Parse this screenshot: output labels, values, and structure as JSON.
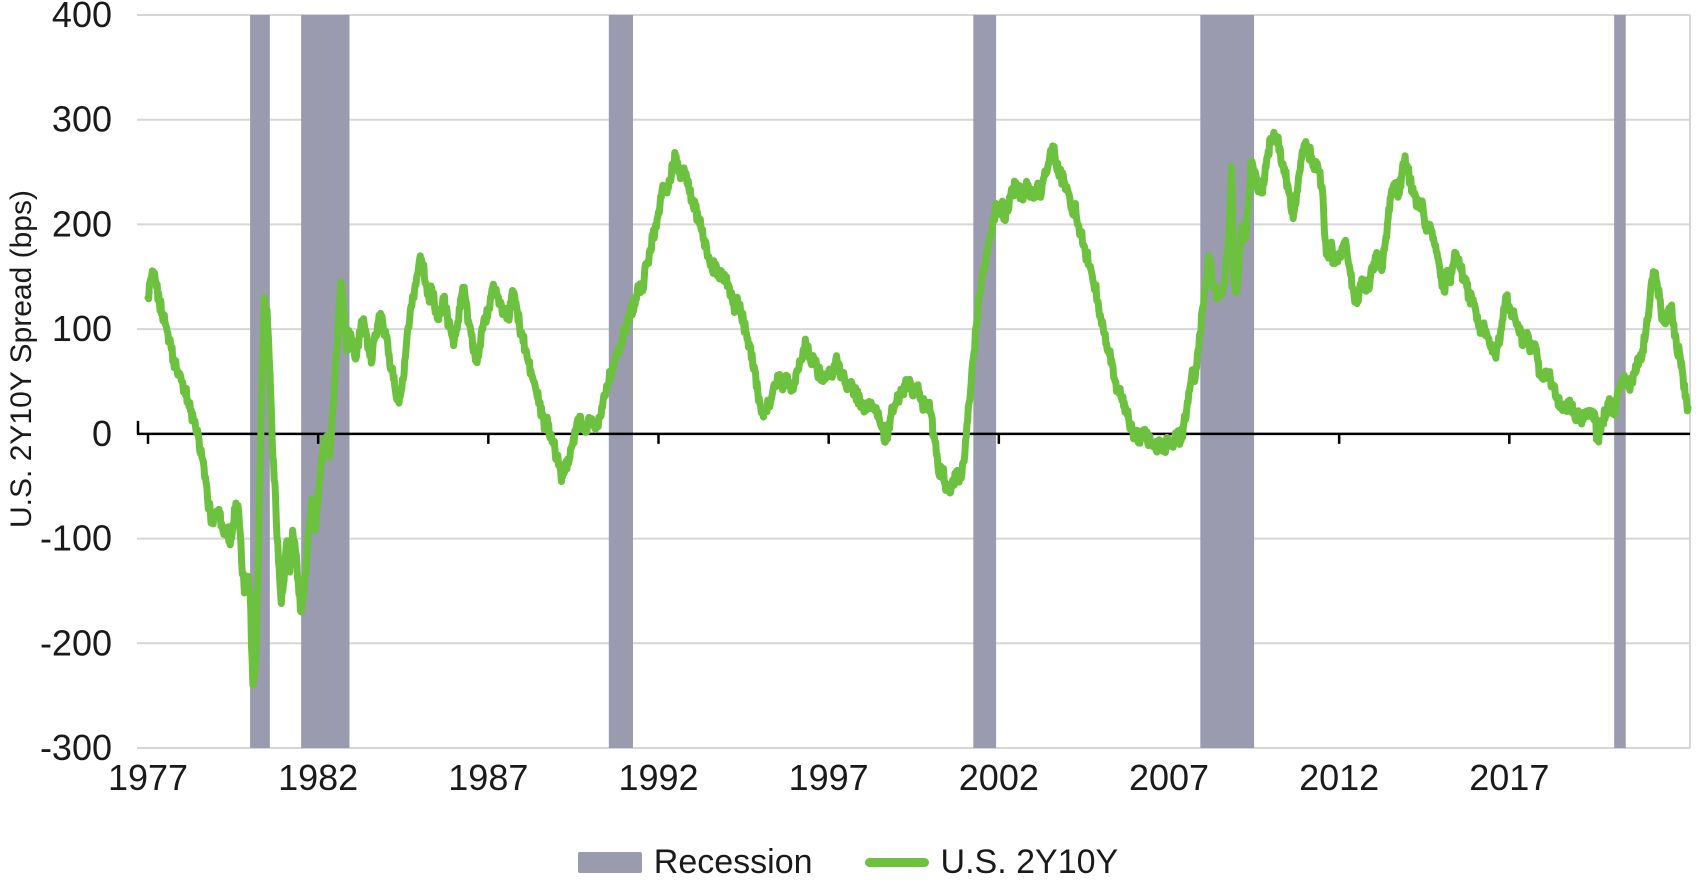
{
  "chart": {
    "y_axis_title": "U.S. 2Y10Y Spread (bps)"
  },
  "legend": {
    "recession_label": "Recession",
    "series_label": "U.S. 2Y10Y"
  },
  "colors": {
    "series_green": "#6cc13e",
    "recession_gray": "#9b9bb0",
    "gridline": "#d6d6d6",
    "axis_black": "#000000",
    "text": "#1a1a1a"
  },
  "chart_data": {
    "type": "line",
    "title": "",
    "xlabel": "",
    "ylabel": "U.S. 2Y10Y Spread (bps)",
    "ylim": [
      -300,
      400
    ],
    "y_ticks": [
      400,
      300,
      200,
      100,
      0,
      -100,
      -200,
      -300
    ],
    "x_ticks": [
      1977,
      1982,
      1987,
      1992,
      1997,
      2002,
      2007,
      2012,
      2017
    ],
    "x_domain": [
      1977.0,
      2022.25
    ],
    "grid": "horizontal",
    "zero_axis": true,
    "legend_position": "bottom",
    "series": [
      {
        "name": "U.S. 2Y10Y",
        "color": "#6cc13e",
        "unit": "bps",
        "start_year": 1977,
        "interval_months": 1,
        "values_bps": [
          130,
          148,
          150,
          140,
          126,
          116,
          106,
          96,
          86,
          72,
          62,
          56,
          50,
          42,
          32,
          22,
          12,
          2,
          -6,
          -22,
          -42,
          -62,
          -76,
          -86,
          -80,
          -72,
          -86,
          -96,
          -90,
          -106,
          -86,
          -66,
          -76,
          -122,
          -152,
          -136,
          -152,
          -240,
          -218,
          -110,
          30,
          130,
          118,
          58,
          -22,
          -62,
          -122,
          -162,
          -140,
          -102,
          -132,
          -92,
          -112,
          -142,
          -170,
          -150,
          -120,
          -82,
          -62,
          -92,
          -62,
          -32,
          -12,
          -2,
          -22,
          18,
          58,
          100,
          145,
          118,
          82,
          95,
          90,
          72,
          85,
          100,
          110,
          95,
          80,
          70,
          95,
          105,
          115,
          100,
          92,
          76,
          60,
          46,
          32,
          36,
          52,
          82,
          102,
          122,
          138,
          152,
          170,
          158,
          144,
          130,
          140,
          124,
          110,
          114,
          130,
          120,
          104,
          95,
          90,
          100,
          120,
          140,
          128,
          108,
          94,
          78,
          68,
          86,
          100,
          110,
          120,
          130,
          140,
          134,
          124,
          114,
          120,
          110,
          125,
          135,
          120,
          104,
          94,
          80,
          70,
          60,
          50,
          40,
          30,
          16,
          6,
          10,
          0,
          -10,
          -20,
          -30,
          -42,
          -34,
          -24,
          -14,
          -4,
          6,
          14,
          10,
          4,
          10,
          14,
          10,
          6,
          16,
          26,
          36,
          46,
          56,
          66,
          76,
          82,
          90,
          96,
          106,
          116,
          122,
          130,
          140,
          136,
          150,
          162,
          176,
          186,
          200,
          212,
          226,
          236,
          230,
          242,
          256,
          266,
          250,
          244,
          254,
          240,
          230,
          224,
          214,
          204,
          196,
          186,
          176,
          166,
          156,
          162,
          152,
          156,
          146,
          150,
          140,
          130,
          120,
          126,
          116,
          106,
          96,
          86,
          76,
          60,
          40,
          26,
          16,
          22,
          30,
          36,
          46,
          56,
          50,
          46,
          56,
          50,
          46,
          50,
          60,
          70,
          80,
          85,
          76,
          66,
          70,
          60,
          56,
          50,
          56,
          60,
          56,
          66,
          70,
          60,
          56,
          50,
          46,
          50,
          40,
          36,
          30,
          26,
          22,
          26,
          30,
          26,
          20,
          12,
          6,
          -8,
          4,
          18,
          24,
          30,
          36,
          40,
          46,
          50,
          46,
          40,
          44,
          40,
          30,
          26,
          30,
          20,
          0,
          -20,
          -40,
          -34,
          -46,
          -50,
          -56,
          -46,
          -40,
          -46,
          -36,
          -20,
          12,
          40,
          72,
          102,
          130,
          150,
          160,
          172,
          190,
          202,
          220,
          210,
          220,
          206,
          216,
          226,
          230,
          240,
          234,
          226,
          230,
          236,
          226,
          230,
          226,
          236,
          230,
          246,
          250,
          266,
          275,
          260,
          250,
          246,
          240,
          236,
          226,
          210,
          220,
          200,
          190,
          180,
          170,
          160,
          150,
          140,
          126,
          110,
          96,
          86,
          76,
          66,
          50,
          40,
          36,
          26,
          20,
          10,
          4,
          0,
          -6,
          -2,
          4,
          0,
          -6,
          -10,
          -8,
          -12,
          -10,
          -16,
          -10,
          -8,
          -12,
          -4,
          0,
          -6,
          6,
          16,
          40,
          56,
          50,
          76,
          96,
          122,
          146,
          170,
          156,
          140,
          130,
          136,
          140,
          156,
          186,
          255,
          145,
          136,
          180,
          196,
          186,
          220,
          260,
          250,
          236,
          240,
          230,
          256,
          270,
          280,
          288,
          282,
          274,
          256,
          246,
          236,
          216,
          210,
          230,
          250,
          270,
          274,
          270,
          266,
          260,
          256,
          250,
          236,
          186,
          170,
          180,
          166,
          166,
          170,
          178,
          183,
          168,
          152,
          138,
          126,
          136,
          148,
          143,
          138,
          150,
          156,
          170,
          165,
          156,
          176,
          200,
          225,
          236,
          240,
          230,
          246,
          260,
          256,
          240,
          235,
          226,
          216,
          220,
          206,
          196,
          200,
          186,
          180,
          166,
          150,
          136,
          156,
          146,
          160,
          170,
          166,
          156,
          146,
          140,
          130,
          126,
          120,
          106,
          96,
          106,
          96,
          86,
          78,
          76,
          86,
          100,
          120,
          128,
          122,
          116,
          110,
          105,
          96,
          86,
          92,
          86,
          80,
          86,
          70,
          56,
          52,
          60,
          56,
          48,
          45,
          35,
          28,
          25,
          22,
          28,
          25,
          18,
          16,
          14,
          13,
          17,
          18,
          22,
          20,
          -6,
          4,
          12,
          22,
          28,
          25,
          18,
          35,
          45,
          48,
          52,
          45,
          50,
          58,
          65,
          72,
          80,
          95,
          112,
          142,
          152,
          145,
          130,
          110,
          105,
          116,
          122,
          105,
          82,
          78,
          60,
          35,
          25
        ]
      }
    ],
    "recessions": {
      "name": "Recession",
      "color": "#9b9bb0",
      "bands_decimal_years": [
        [
          1980.0,
          1980.58
        ],
        [
          1981.5,
          1982.92
        ],
        [
          1990.54,
          1991.25
        ],
        [
          2001.25,
          2001.92
        ],
        [
          2007.92,
          2009.5
        ],
        [
          2020.08,
          2020.42
        ]
      ]
    }
  }
}
